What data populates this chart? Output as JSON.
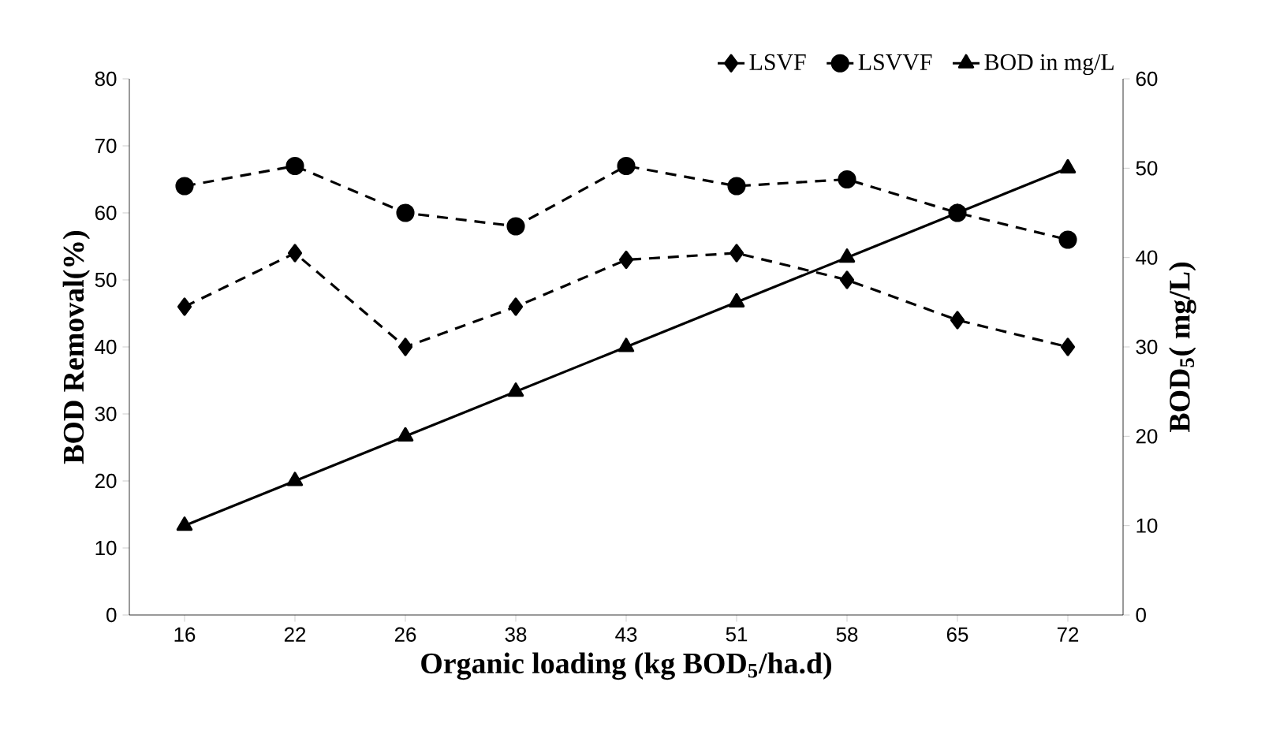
{
  "chart_data": {
    "type": "line",
    "xlabel": "Organic loading (kg BOD$_{5}$/ha.d)",
    "ylabel": "BOD Removal(%)",
    "y2label": "BOD$_{5}$( mg/L)",
    "categories": [
      "16",
      "22",
      "26",
      "38",
      "43",
      "51",
      "58",
      "65",
      "72"
    ],
    "series": [
      {
        "name": "LSVF",
        "color": "#000000",
        "marker": "diamond",
        "line_style": "dashed",
        "values": [
          46,
          54,
          40,
          46,
          53,
          54,
          50,
          44,
          40
        ]
      },
      {
        "name": "LSVVF",
        "color": "#000000",
        "marker": "circle",
        "line_style": "dashed",
        "values": [
          64,
          67,
          60,
          58,
          67,
          64,
          65,
          60,
          56
        ]
      },
      {
        "name": "BOD in mg/L",
        "color": "#000000",
        "marker": "triangle",
        "line_style": "solid",
        "axis": "y2",
        "values": [
          10,
          15,
          20,
          25,
          30,
          35,
          40,
          45,
          50
        ]
      }
    ],
    "ylim": [
      0,
      80
    ],
    "yticks": [
      0,
      10,
      20,
      30,
      40,
      50,
      60,
      70,
      80
    ],
    "y2lim": [
      0,
      60
    ],
    "y2ticks": [
      0,
      10,
      20,
      30,
      40,
      50,
      60
    ],
    "grid": false,
    "legend": "top right"
  }
}
